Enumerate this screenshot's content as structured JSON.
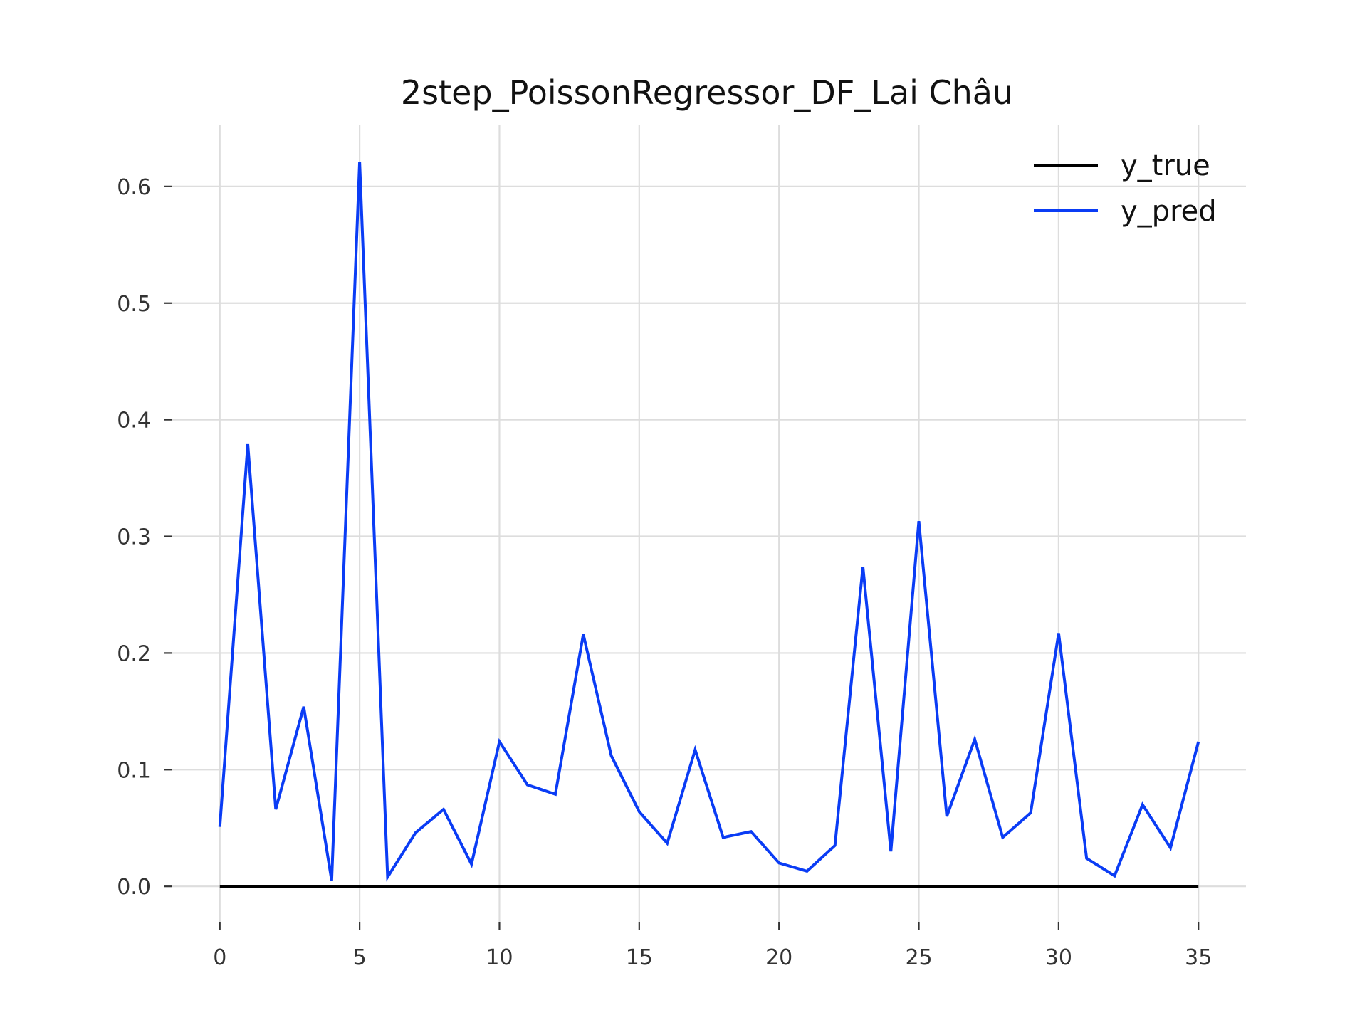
{
  "chart_data": {
    "type": "line",
    "title": "2step_PoissonRegressor_DF_Lai Châu",
    "xlabel": "",
    "ylabel": "",
    "xlim": [
      -1.7,
      36.7
    ],
    "ylim": [
      -0.031,
      0.653
    ],
    "xticks": [
      0,
      5,
      10,
      15,
      20,
      25,
      30,
      35
    ],
    "xtick_labels": [
      "0",
      "5",
      "10",
      "15",
      "20",
      "25",
      "30",
      "35"
    ],
    "yticks": [
      0.0,
      0.1,
      0.2,
      0.3,
      0.4,
      0.5,
      0.6
    ],
    "ytick_labels": [
      "0.0",
      "0.1",
      "0.2",
      "0.3",
      "0.4",
      "0.5",
      "0.6"
    ],
    "grid": true,
    "legend_position": "top-right",
    "x": [
      0,
      1,
      2,
      3,
      4,
      5,
      6,
      7,
      8,
      9,
      10,
      11,
      12,
      13,
      14,
      15,
      16,
      17,
      18,
      19,
      20,
      21,
      22,
      23,
      24,
      25,
      26,
      27,
      28,
      29,
      30,
      31,
      32,
      33,
      34,
      35
    ],
    "series": [
      {
        "name": "y_true",
        "color": "#000000",
        "values": [
          0,
          0,
          0,
          0,
          0,
          0,
          0,
          0,
          0,
          0,
          0,
          0,
          0,
          0,
          0,
          0,
          0,
          0,
          0,
          0,
          0,
          0,
          0,
          0,
          0,
          0,
          0,
          0,
          0,
          0,
          0,
          0,
          0,
          0,
          0,
          0
        ]
      },
      {
        "name": "y_pred",
        "color": "#0a3cf5",
        "values": [
          0.051,
          0.379,
          0.066,
          0.154,
          0.005,
          0.621,
          0.008,
          0.046,
          0.066,
          0.019,
          0.124,
          0.087,
          0.079,
          0.216,
          0.112,
          0.064,
          0.037,
          0.117,
          0.042,
          0.047,
          0.02,
          0.013,
          0.035,
          0.274,
          0.03,
          0.313,
          0.06,
          0.126,
          0.042,
          0.063,
          0.217,
          0.024,
          0.009,
          0.07,
          0.033,
          0.124
        ]
      }
    ]
  }
}
